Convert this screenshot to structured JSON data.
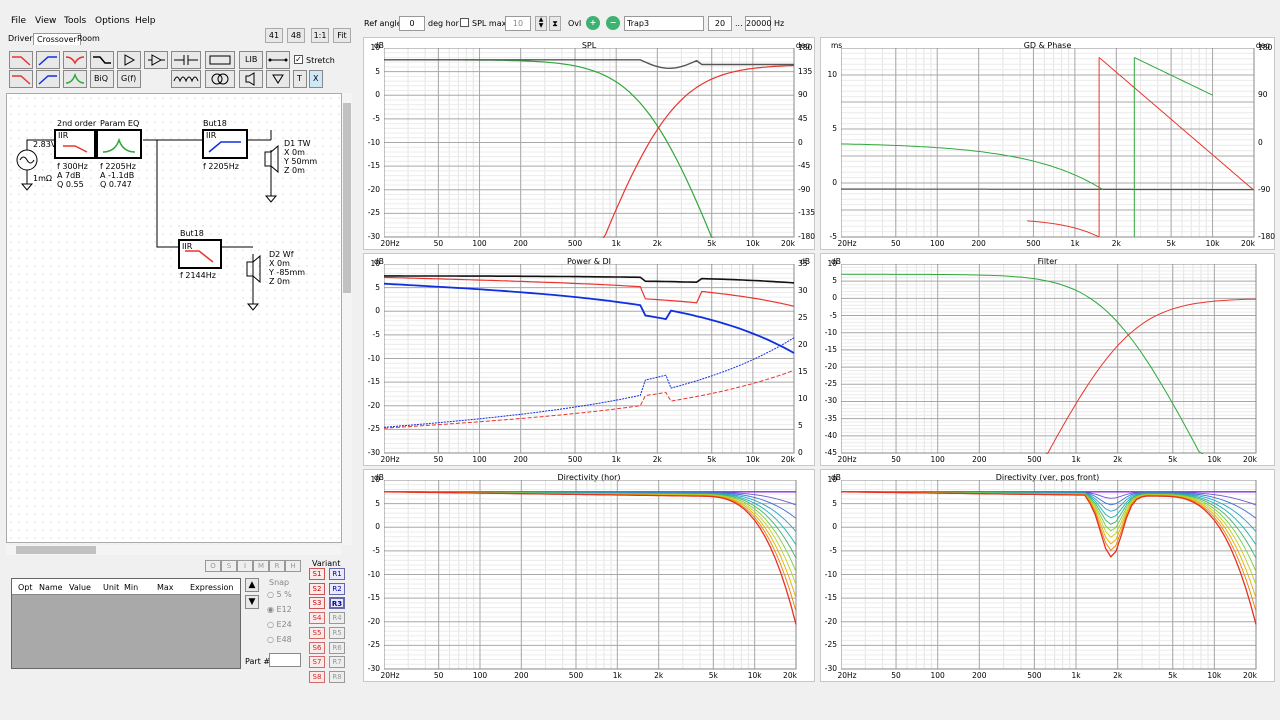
{
  "menu": {
    "file": "File",
    "view": "View",
    "tools": "Tools",
    "options": "Options",
    "help": "Help"
  },
  "tabs": {
    "drivers": "Drivers",
    "crossover": "Crossover",
    "room": "Room"
  },
  "zoom_buttons": {
    "b41": "41",
    "b48": "48",
    "b11": "1:1",
    "fit": "Fit"
  },
  "toolbar": {
    "biq": "BiQ",
    "gf": "G(f)",
    "lib": "LIB",
    "t": "T",
    "x": "X",
    "stretch_label": "Stretch",
    "stretch_checked": true
  },
  "topbar": {
    "ref_angle_label": "Ref angle",
    "ref_angle_value": "0",
    "deg_hor": "deg hor",
    "spl_max_label": "SPL max",
    "spl_max_value": "10",
    "ovl_label": "Ovl",
    "ovl_name": "Trap3",
    "fmin": "20",
    "fdots": "...",
    "fmax": "20000",
    "hz": "Hz"
  },
  "schematic": {
    "source_v": "2.83V",
    "source_r": "1mΩ",
    "b1_title": "2nd order",
    "b1_type": "IIR",
    "b1_p1": "f   300Hz",
    "b1_p2": "A   7dB",
    "b1_p3": "Q   0.55",
    "b2_title": "Param EQ",
    "b2_p1": "f   2205Hz",
    "b2_p2": "A   -1.1dB",
    "b2_p3": "Q   0.747",
    "b3_title": "But18",
    "b3_type": "IIR",
    "b3_p1": "f   2205Hz",
    "b4_title": "But18",
    "b4_type": "IIR",
    "b4_p1": "f   2144Hz",
    "d1_name": "D1 TW",
    "d1_x": "X  0m",
    "d1_y": "Y  50mm",
    "d1_z": "Z  0m",
    "d2_name": "D2 Wf",
    "d2_x": "X  0m",
    "d2_y": "Y  -85mm",
    "d2_z": "Z  0m"
  },
  "param_table": {
    "cols": [
      "Opt",
      "Name",
      "Value",
      "Unit",
      "Min",
      "Max",
      "Expression"
    ]
  },
  "opt_buttons": [
    "O",
    "S",
    "I",
    "M",
    "R",
    "H"
  ],
  "snap": {
    "label": "Snap",
    "options": [
      "5 %",
      "E12",
      "E24",
      "E48"
    ],
    "selected": "E12"
  },
  "part_label": "Part #",
  "variant": {
    "label": "Variant",
    "s": [
      "S1",
      "S2",
      "S3",
      "S4",
      "S5",
      "S6",
      "S7",
      "S8"
    ],
    "r": [
      "R1",
      "R2",
      "R3",
      "R4",
      "R5",
      "R6",
      "R7",
      "R8"
    ],
    "active_r": "R3"
  },
  "colors": {
    "red": "#e8352e",
    "green": "#2ea83a",
    "blue": "#1030e0",
    "gray": "#555555"
  },
  "x_ticks": [
    "20Hz",
    "50",
    "100",
    "200",
    "500",
    "1k",
    "2k",
    "5k",
    "10k",
    "20k"
  ],
  "charts": [
    {
      "title": "SPL",
      "ylabel": "dB",
      "yrlabel": "deg",
      "yticks": [
        "10",
        "5",
        "0",
        "-5",
        "-10",
        "-15",
        "-20",
        "-25",
        "-30"
      ],
      "yrticks": [
        "180",
        "135",
        "90",
        "45",
        "0",
        "-45",
        "-90",
        "-135",
        "-180"
      ]
    },
    {
      "title": "GD & Phase",
      "ylabel": "ms",
      "yrlabel": "deg",
      "yticks": [
        "",
        "10",
        "",
        "5",
        "",
        "0",
        "",
        "-5"
      ],
      "yrticks": [
        "180",
        "",
        "90",
        "",
        "0",
        "",
        "-90",
        "",
        "-180"
      ]
    },
    {
      "title": "Power & DI",
      "ylabel": "dB",
      "yrlabel": "dB",
      "yticks": [
        "10",
        "5",
        "0",
        "-5",
        "-10",
        "-15",
        "-20",
        "-25",
        "-30"
      ],
      "yrticks": [
        "35",
        "30",
        "25",
        "20",
        "15",
        "10",
        "5",
        "0"
      ]
    },
    {
      "title": "Filter",
      "ylabel": "dB",
      "yrlabel": "",
      "yticks": [
        "10",
        "5",
        "0",
        "-5",
        "-10",
        "-15",
        "-20",
        "-25",
        "-30",
        "-35",
        "-40",
        "-45"
      ],
      "yrticks": []
    },
    {
      "title": "Directivity (hor)",
      "ylabel": "dB",
      "yrlabel": "",
      "yticks": [
        "10",
        "5",
        "0",
        "-5",
        "-10",
        "-15",
        "-20",
        "-25",
        "-30"
      ],
      "yrticks": []
    },
    {
      "title": "Directivity (ver, pos front)",
      "ylabel": "dB",
      "yrlabel": "",
      "yticks": [
        "10",
        "5",
        "0",
        "-5",
        "-10",
        "-15",
        "-20",
        "-25",
        "-30"
      ],
      "yrticks": []
    }
  ]
}
